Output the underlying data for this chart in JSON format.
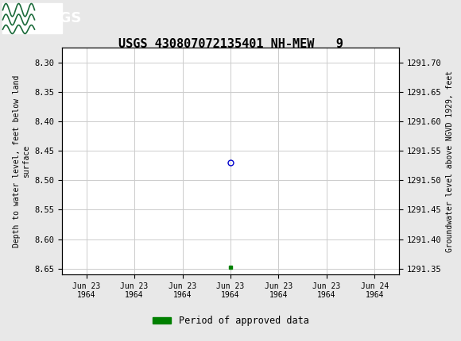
{
  "title": "USGS 430807072135401 NH-MEW   9",
  "title_fontsize": 11,
  "ylabel_left": "Depth to water level, feet below land\nsurface",
  "ylabel_right": "Groundwater level above NGVD 1929, feet",
  "ylim_left": [
    8.66,
    8.275
  ],
  "ylim_right": [
    1291.34,
    1291.725
  ],
  "yticks_left": [
    8.3,
    8.35,
    8.4,
    8.45,
    8.5,
    8.55,
    8.6,
    8.65
  ],
  "yticks_right": [
    1291.7,
    1291.65,
    1291.6,
    1291.55,
    1291.5,
    1291.45,
    1291.4,
    1291.35
  ],
  "data_point_x": 3,
  "data_point_y": 8.47,
  "data_point_color": "#0000cc",
  "data_point_size": 5,
  "green_square_x": 3,
  "green_square_y": 8.648,
  "green_square_color": "#008000",
  "header_color": "#1b6b3a",
  "background_color": "#e8e8e8",
  "plot_background": "#ffffff",
  "grid_color": "#cccccc",
  "legend_label": "Period of approved data",
  "legend_color": "#008000",
  "font_family": "monospace",
  "xaxis_label_dates": [
    "Jun 23\n1964",
    "Jun 23\n1964",
    "Jun 23\n1964",
    "Jun 23\n1964",
    "Jun 23\n1964",
    "Jun 23\n1964",
    "Jun 24\n1964"
  ],
  "n_ticks": 7,
  "xlim": [
    -0.5,
    6.5
  ]
}
